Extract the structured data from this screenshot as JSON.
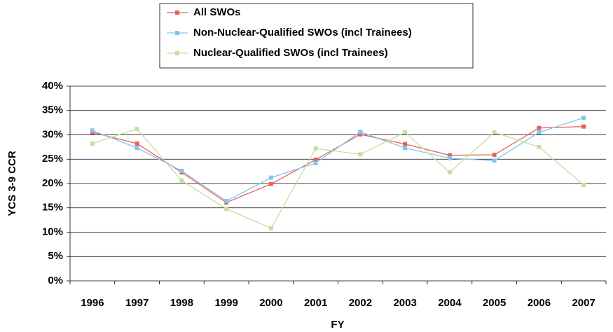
{
  "chart_data": {
    "type": "line",
    "x_label": "FY",
    "y_label": "YCS 3-9 CCR",
    "categories": [
      "1996",
      "1997",
      "1998",
      "1999",
      "2000",
      "2001",
      "2002",
      "2003",
      "2004",
      "2005",
      "2006",
      "2007"
    ],
    "series": [
      {
        "name": "All SWOs",
        "color": "#e8605c",
        "values": [
          30.5,
          28.2,
          22.3,
          16.1,
          19.9,
          24.9,
          30.1,
          28.1,
          25.8,
          25.9,
          31.4,
          31.7
        ]
      },
      {
        "name": "Non-Nuclear-Qualified SWOs (incl Trainees)",
        "color": "#7fc6ef",
        "values": [
          30.9,
          27.3,
          22.6,
          16.4,
          21.2,
          24.2,
          30.6,
          27.3,
          25.2,
          24.7,
          30.5,
          33.5
        ]
      },
      {
        "name": "Nuclear-Qualified SWOs (incl Trainees)",
        "color": "#c4e09a",
        "values": [
          28.2,
          31.2,
          20.6,
          14.8,
          10.8,
          27.2,
          26.0,
          30.5,
          22.3,
          30.5,
          27.5,
          19.7
        ]
      }
    ],
    "ylim": [
      0,
      40
    ],
    "yticks": [
      {
        "value": 0,
        "label": "0%"
      },
      {
        "value": 5,
        "label": "5%"
      },
      {
        "value": 10,
        "label": "10%"
      },
      {
        "value": 15,
        "label": "15%"
      },
      {
        "value": 20,
        "label": "20%"
      },
      {
        "value": 25,
        "label": "25%"
      },
      {
        "value": 30,
        "label": "30%"
      },
      {
        "value": 35,
        "label": "35%"
      },
      {
        "value": 40,
        "label": "40%"
      }
    ],
    "grid": true,
    "legend": "top"
  }
}
